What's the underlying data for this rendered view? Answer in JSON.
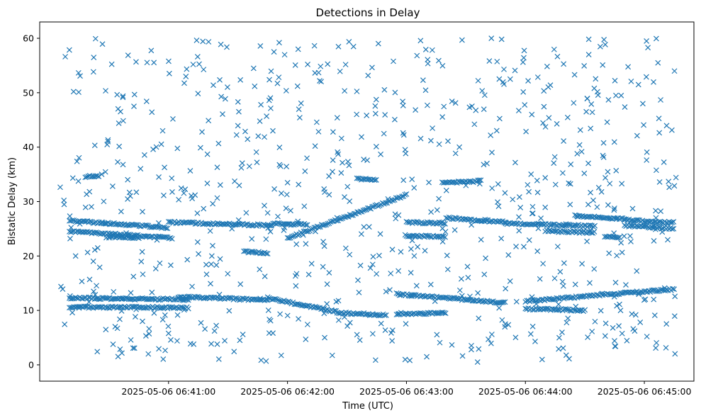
{
  "chart_data": {
    "type": "scatter",
    "title": "Detections in Delay",
    "xlabel": "Time (UTC)",
    "ylabel": "Bistatic Delay (km)",
    "x_unit": "seconds after 2025-05-06 06:40:00 UTC",
    "xlim": [
      -5,
      325
    ],
    "ylim": [
      -3,
      63
    ],
    "x_ticks": [
      {
        "value": 60,
        "label": "2025-05-06 06:41:00"
      },
      {
        "value": 120,
        "label": "2025-05-06 06:42:00"
      },
      {
        "value": 180,
        "label": "2025-05-06 06:43:00"
      },
      {
        "value": 240,
        "label": "2025-05-06 06:44:00"
      },
      {
        "value": 300,
        "label": "2025-05-06 06:45:00"
      }
    ],
    "y_ticks": [
      0,
      10,
      20,
      30,
      40,
      50,
      60
    ],
    "marker": "x",
    "color": "#1f77b4",
    "grid": false,
    "tracks": [
      {
        "x": [
          10,
          60
        ],
        "y": [
          26.5,
          25.2
        ]
      },
      {
        "x": [
          10,
          62
        ],
        "y": [
          24.5,
          23.3
        ]
      },
      {
        "x": [
          60,
          112
        ],
        "y": [
          26.2,
          25.6
        ]
      },
      {
        "x": [
          112,
          130
        ],
        "y": [
          25.9,
          25.8
        ]
      },
      {
        "x": [
          98,
          110
        ],
        "y": [
          20.8,
          20.5
        ]
      },
      {
        "x": [
          120,
          180
        ],
        "y": [
          23.3,
          31.2
        ]
      },
      {
        "x": [
          180,
          200
        ],
        "y": [
          26.2,
          26.0
        ]
      },
      {
        "x": [
          180,
          200
        ],
        "y": [
          23.6,
          23.6
        ]
      },
      {
        "x": [
          200,
          230
        ],
        "y": [
          27.0,
          26.2
        ]
      },
      {
        "x": [
          230,
          275
        ],
        "y": [
          26.0,
          25.5
        ]
      },
      {
        "x": [
          265,
          290
        ],
        "y": [
          27.4,
          26.8
        ]
      },
      {
        "x": [
          290,
          315
        ],
        "y": [
          26.6,
          26.1
        ]
      },
      {
        "x": [
          290,
          315
        ],
        "y": [
          25.6,
          25.0
        ]
      },
      {
        "x": [
          250,
          275
        ],
        "y": [
          24.6,
          24.3
        ]
      },
      {
        "x": [
          10,
          70
        ],
        "y": [
          12.3,
          12.0
        ]
      },
      {
        "x": [
          10,
          70
        ],
        "y": [
          10.6,
          10.5
        ]
      },
      {
        "x": [
          65,
          110
        ],
        "y": [
          12.5,
          11.9
        ]
      },
      {
        "x": [
          110,
          145
        ],
        "y": [
          12.3,
          9.7
        ]
      },
      {
        "x": [
          145,
          170
        ],
        "y": [
          9.6,
          9.1
        ]
      },
      {
        "x": [
          175,
          230
        ],
        "y": [
          13.0,
          11.4
        ]
      },
      {
        "x": [
          175,
          200
        ],
        "y": [
          9.4,
          9.5
        ]
      },
      {
        "x": [
          240,
          315
        ],
        "y": [
          11.7,
          13.9
        ]
      },
      {
        "x": [
          240,
          270
        ],
        "y": [
          10.3,
          10.0
        ]
      },
      {
        "x": [
          18,
          25
        ],
        "y": [
          34.6,
          34.6
        ]
      },
      {
        "x": [
          198,
          218
        ],
        "y": [
          33.4,
          33.8
        ]
      },
      {
        "x": [
          155,
          165
        ],
        "y": [
          34.2,
          34.1
        ]
      },
      {
        "x": [
          280,
          288
        ],
        "y": [
          23.6,
          23.5
        ]
      },
      {
        "x": [
          30,
          45
        ],
        "y": [
          23.5,
          23.4
        ]
      }
    ],
    "track_point_spacing": 0.75,
    "clutter_points": 760,
    "x_range": [
      5,
      316
    ],
    "y_range": [
      0.5,
      60
    ]
  }
}
